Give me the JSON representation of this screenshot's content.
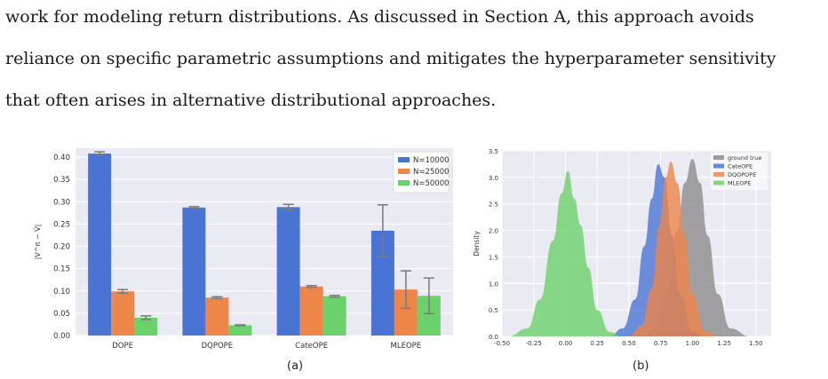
{
  "paragraph": {
    "lines": [
      "work for modeling return distributions.  As discussed in Section A, this approach avoids",
      "reliance on specific parametric assumptions and mitigates the hyperparameter sensitivity",
      "that often arises in alternative distributional approaches."
    ]
  },
  "figure_a": {
    "caption": "(a)",
    "ylabel": "|V^π − V̂|"
  },
  "figure_b": {
    "caption": "(b)",
    "ylabel": "Density"
  },
  "chart_data": [
    {
      "type": "bar",
      "categories": [
        "DOPE",
        "DQPOPE",
        "CateOPE",
        "MLEOPE"
      ],
      "ylim": [
        0,
        0.42
      ],
      "yticks": [
        "0.00",
        "0.05",
        "0.10",
        "0.15",
        "0.20",
        "0.25",
        "0.30",
        "0.35",
        "0.40"
      ],
      "grid": true,
      "legend_position": "top-right",
      "series": [
        {
          "name": "N=10000",
          "color": "#4a74d3",
          "values": [
            0.408,
            0.287,
            0.288,
            0.235
          ],
          "errors": [
            0.004,
            0.002,
            0.006,
            0.058
          ]
        },
        {
          "name": "N=25000",
          "color": "#ee8549",
          "values": [
            0.099,
            0.085,
            0.11,
            0.103
          ],
          "errors": [
            0.004,
            0.002,
            0.002,
            0.042
          ]
        },
        {
          "name": "N=50000",
          "color": "#6bd26b",
          "values": [
            0.04,
            0.023,
            0.088,
            0.089
          ],
          "errors": [
            0.004,
            0.001,
            0.002,
            0.04
          ]
        }
      ]
    },
    {
      "type": "area",
      "xlim": [
        -0.5,
        1.62
      ],
      "ylim": [
        0,
        3.5
      ],
      "xticks": [
        "-0.50",
        "-0.25",
        "0.00",
        "0.25",
        "0.50",
        "0.75",
        "1.00",
        "1.25",
        "1.50"
      ],
      "yticks": [
        "0.0",
        "0.5",
        "1.0",
        "1.5",
        "2.0",
        "2.5",
        "3.0",
        "3.5"
      ],
      "grid": true,
      "legend_position": "top-right",
      "series": [
        {
          "name": "ground true",
          "color": "#8c8c8c",
          "x": [
            0.58,
            0.7,
            0.8,
            0.88,
            0.94,
            1.0,
            1.06,
            1.12,
            1.2,
            1.3,
            1.45
          ],
          "y": [
            0,
            0.15,
            0.8,
            2.0,
            2.9,
            3.35,
            2.9,
            1.9,
            0.8,
            0.15,
            0
          ]
        },
        {
          "name": "CateOPE",
          "color": "#4a74d3",
          "x": [
            0.35,
            0.45,
            0.55,
            0.62,
            0.68,
            0.73,
            0.78,
            0.84,
            0.9,
            1.0,
            1.1
          ],
          "y": [
            0,
            0.15,
            0.7,
            1.7,
            2.6,
            3.25,
            3.0,
            1.9,
            0.8,
            0.1,
            0
          ]
        },
        {
          "name": "DQOPOPE",
          "color": "#ee8549",
          "x": [
            0.5,
            0.6,
            0.68,
            0.74,
            0.79,
            0.83,
            0.88,
            0.94,
            1.0,
            1.1,
            1.2
          ],
          "y": [
            0,
            0.2,
            0.9,
            2.1,
            3.0,
            3.3,
            2.9,
            1.9,
            0.8,
            0.1,
            0
          ]
        },
        {
          "name": "MLEOPE",
          "color": "#6bd26b",
          "x": [
            -0.45,
            -0.3,
            -0.2,
            -0.1,
            -0.03,
            0.02,
            0.07,
            0.12,
            0.18,
            0.25,
            0.35,
            0.45
          ],
          "y": [
            0,
            0.15,
            0.7,
            1.8,
            2.7,
            3.12,
            2.6,
            2.1,
            1.3,
            0.5,
            0.08,
            0
          ]
        }
      ]
    }
  ]
}
